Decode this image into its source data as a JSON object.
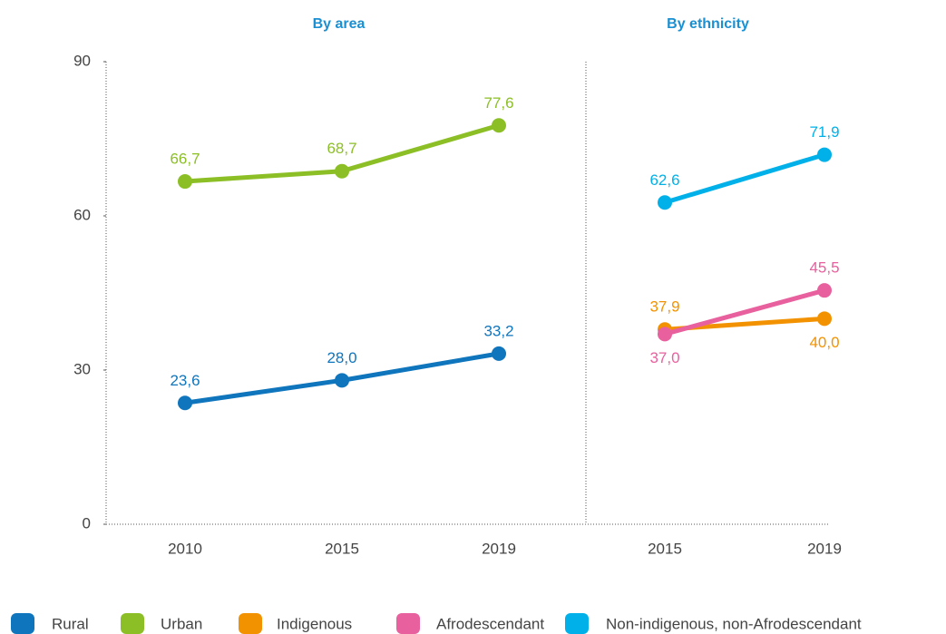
{
  "chart_data": [
    {
      "type": "line",
      "title": "By area",
      "categories": [
        "2010",
        "2015",
        "2019"
      ],
      "ylim": [
        0,
        90
      ],
      "yticks": [
        0,
        30,
        60,
        90
      ],
      "series": [
        {
          "name": "Rural",
          "color": "#0f75bc",
          "values": [
            23.6,
            28.0,
            33.2
          ],
          "value_labels": [
            "23,6",
            "28,0",
            "33,2"
          ]
        },
        {
          "name": "Urban",
          "color": "#8cbf26",
          "values": [
            66.7,
            68.7,
            77.6
          ],
          "value_labels": [
            "66,7",
            "68,7",
            "77,6"
          ]
        }
      ]
    },
    {
      "type": "line",
      "title": "By ethnicity",
      "categories": [
        "2015",
        "2019"
      ],
      "ylim": [
        0,
        90
      ],
      "series": [
        {
          "name": "Indigenous",
          "color": "#f39200",
          "values": [
            37.9,
            40.0
          ],
          "value_labels": [
            "37,9",
            "40,0"
          ]
        },
        {
          "name": "Afrodescendant",
          "color": "#e8609d",
          "values": [
            37.0,
            45.5
          ],
          "value_labels": [
            "37,0",
            "45,5"
          ]
        },
        {
          "name": "Non-indigenous, non-Afrodescendant",
          "color": "#00b1e9",
          "values": [
            62.6,
            71.9
          ],
          "value_labels": [
            "62,6",
            "71,9"
          ]
        }
      ]
    }
  ]
}
